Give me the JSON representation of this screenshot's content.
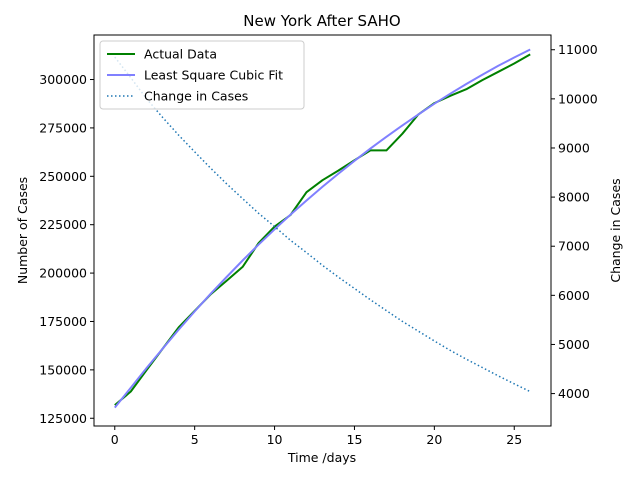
{
  "chart_data": {
    "type": "line",
    "title": "New York After SAHO",
    "xlabel": "Time /days",
    "ylabel": "Number of Cases",
    "y2label": "Change in Cases",
    "xlim": [
      -1.3,
      27.3
    ],
    "ylim": [
      121000,
      323000
    ],
    "y2lim": [
      3340,
      11300
    ],
    "xticks": [
      0,
      5,
      10,
      15,
      20,
      25
    ],
    "yticks": [
      125000,
      150000,
      175000,
      200000,
      225000,
      250000,
      275000,
      300000
    ],
    "y2ticks": [
      4000,
      5000,
      6000,
      7000,
      8000,
      9000,
      10000,
      11000
    ],
    "grid": false,
    "legend_position": "top-left",
    "x": [
      0,
      1,
      2,
      3,
      4,
      5,
      6,
      7,
      8,
      9,
      10,
      11,
      12,
      13,
      14,
      15,
      16,
      17,
      18,
      19,
      20,
      21,
      22,
      23,
      24,
      25,
      26
    ],
    "series": [
      {
        "name": "Actual Data",
        "axis": "left",
        "color": "#008000",
        "style": "solid",
        "values": [
          131800,
          138800,
          150000,
          161000,
          172000,
          180500,
          189000,
          196000,
          203200,
          215500,
          224000,
          230000,
          241800,
          248000,
          253000,
          258300,
          263400,
          263400,
          272000,
          282000,
          287800,
          291600,
          295000,
          299700,
          304000,
          308300,
          313000
        ]
      },
      {
        "name": "Least Square Cubic Fit",
        "axis": "left",
        "color": "#8080ff",
        "style": "solid",
        "values": [
          130500,
          140800,
          151000,
          161000,
          170800,
          180200,
          189300,
          198000,
          206500,
          214700,
          222600,
          230200,
          237500,
          244600,
          251400,
          258000,
          264300,
          270400,
          276300,
          282000,
          287500,
          292700,
          297700,
          302500,
          307100,
          311400,
          315500
        ]
      },
      {
        "name": "Change in Cases",
        "axis": "right",
        "color": "#1f77b4",
        "style": "dotted",
        "values": [
          10850,
          10430,
          10000,
          9620,
          9260,
          8920,
          8590,
          8270,
          7970,
          7670,
          7400,
          7120,
          6870,
          6610,
          6370,
          6140,
          5910,
          5690,
          5470,
          5270,
          5070,
          4880,
          4700,
          4530,
          4360,
          4200,
          4040
        ]
      }
    ]
  }
}
